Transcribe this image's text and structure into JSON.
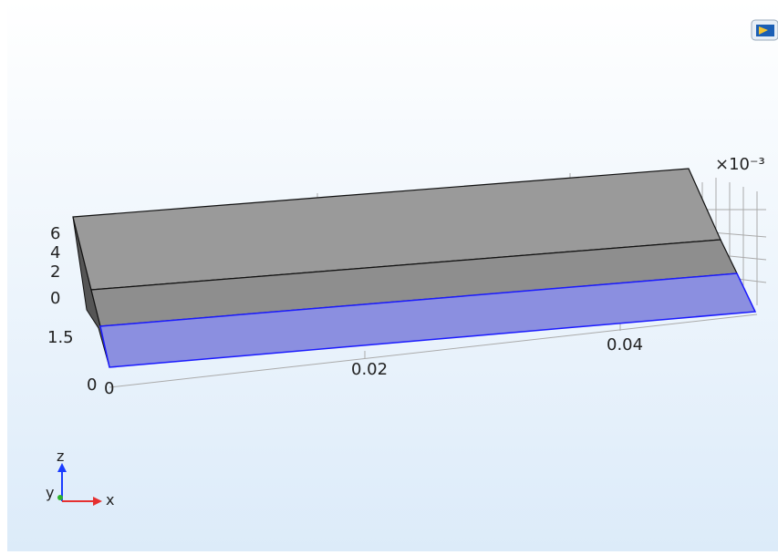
{
  "axes": {
    "z_ticks": [
      "6",
      "4",
      "2",
      "0"
    ],
    "y_ticks": [
      "1.5",
      "0"
    ],
    "x_ticks": [
      "0",
      "0.02",
      "0.04"
    ],
    "scale": "×10⁻³"
  },
  "triad": {
    "z": "z",
    "y": "y",
    "x": "x"
  }
}
